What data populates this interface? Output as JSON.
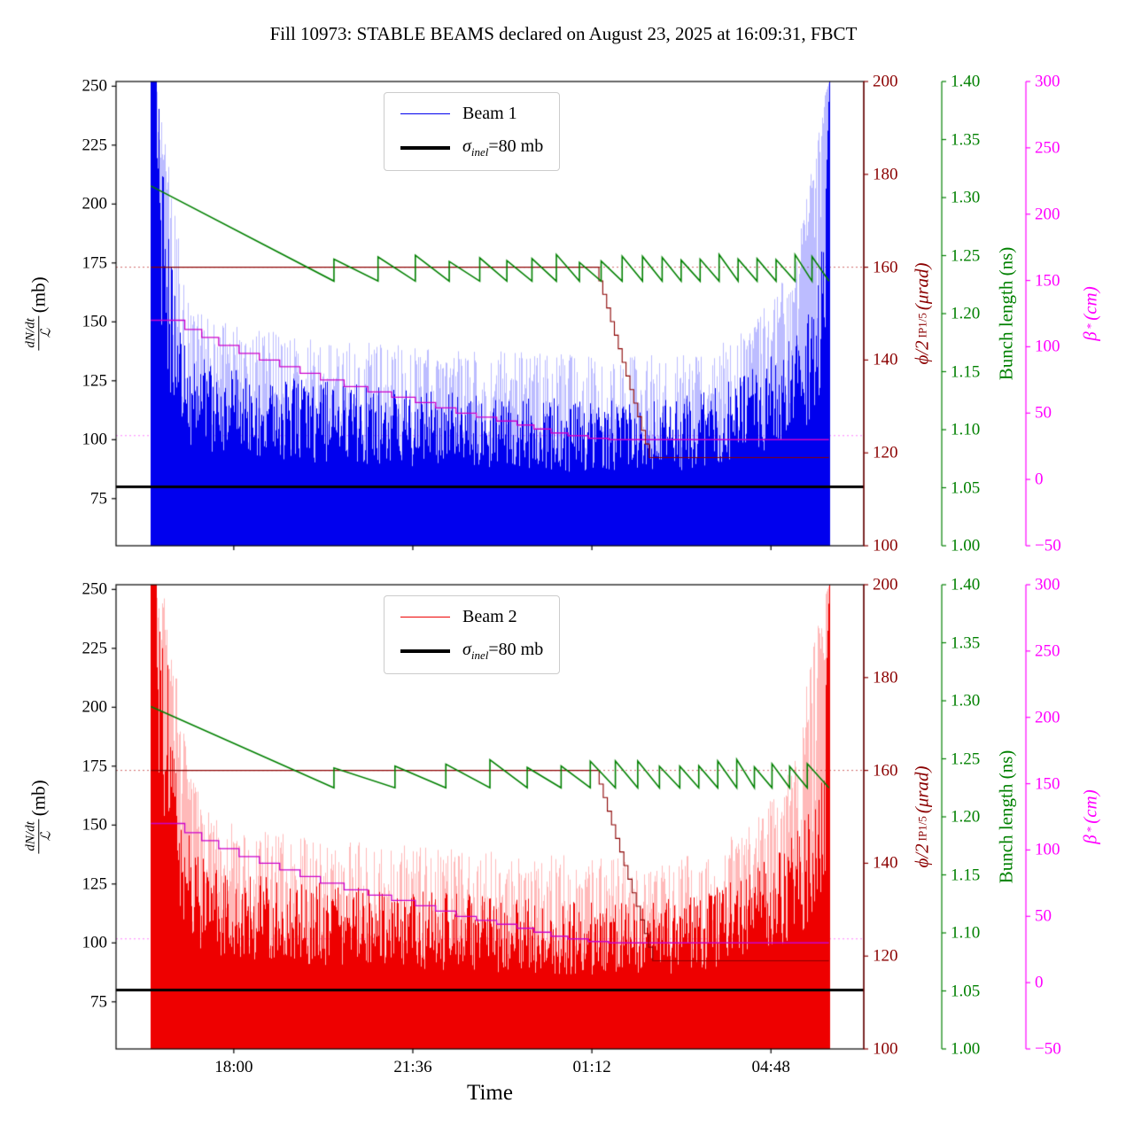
{
  "chart_data": {
    "type": "line",
    "title": "Fill 10973: STABLE BEAMS declared on August 23, 2025 at 16:09:31, FBCT",
    "xlabel": "Time",
    "axes": {
      "left": {
        "num": "dN/dt",
        "den": "ℒ",
        "post": " (mb)",
        "color": "#000000",
        "range": [
          55,
          252
        ],
        "tick_values": [
          75,
          100,
          125,
          150,
          175,
          200,
          225,
          250
        ],
        "tick_labels": [
          "75",
          "100",
          "125",
          "150",
          "175",
          "200",
          "225",
          "250"
        ]
      },
      "phi": {
        "pre": "ϕ/2",
        "sub": "IP1/5",
        "post": " (μrad)",
        "color": "#8b0000",
        "range": [
          100,
          200
        ],
        "tick_values": [
          100,
          120,
          140,
          160,
          180,
          200
        ],
        "tick_labels": [
          "100",
          "120",
          "140",
          "160",
          "180",
          "200"
        ]
      },
      "bunch": {
        "label": "Bunch length (ns)",
        "color": "#008000",
        "range": [
          1.0,
          1.4
        ],
        "tick_values": [
          1.0,
          1.05,
          1.1,
          1.15,
          1.2,
          1.25,
          1.3,
          1.35,
          1.4
        ],
        "tick_labels": [
          "1.00",
          "1.05",
          "1.10",
          "1.15",
          "1.20",
          "1.25",
          "1.30",
          "1.35",
          "1.40"
        ]
      },
      "beta": {
        "pre": "β",
        "sup": "*",
        "post": " (cm)",
        "color": "#ff00ff",
        "range": [
          -50,
          300
        ],
        "tick_values": [
          -50,
          0,
          50,
          100,
          150,
          200,
          250,
          300
        ],
        "tick_labels": [
          "−50",
          "0",
          "50",
          "100",
          "150",
          "200",
          "250",
          "300"
        ]
      }
    },
    "xaxis": {
      "tick_labels": [
        "18:00",
        "21:36",
        "01:12",
        "04:48"
      ],
      "tick_minutes": [
        120,
        336,
        552,
        768
      ],
      "range_minutes": [
        -22,
        880
      ],
      "data_minutes": [
        20,
        838
      ]
    },
    "charts": [
      {
        "name": "beam1",
        "legend": {
          "line_label": "Beam 1",
          "sigma_pre": "σ",
          "sigma_sub": "inel",
          "sigma_post": "=80 mb"
        },
        "beam_color": "#0000ee",
        "beam_color_light": "rgba(80,80,255,0.38)",
        "sigma_value": 80,
        "sigma_color": "#000000",
        "noise": {
          "seed": 42,
          "low": 55,
          "high_light": [
            [
              0,
              252
            ],
            [
              0.012,
              252
            ],
            [
              0.022,
              235
            ],
            [
              0.035,
              195
            ],
            [
              0.05,
              168
            ],
            [
              0.08,
              152
            ],
            [
              0.15,
              147
            ],
            [
              0.25,
              143
            ],
            [
              0.4,
              140
            ],
            [
              0.55,
              137
            ],
            [
              0.7,
              135
            ],
            [
              0.8,
              138
            ],
            [
              0.87,
              146
            ],
            [
              0.92,
              162
            ],
            [
              0.95,
              180
            ],
            [
              0.97,
              212
            ],
            [
              0.985,
              238
            ],
            [
              1,
              252
            ]
          ],
          "high_dark": [
            [
              0,
              252
            ],
            [
              0.012,
              252
            ],
            [
              0.025,
              192
            ],
            [
              0.04,
              152
            ],
            [
              0.06,
              137
            ],
            [
              0.1,
              132
            ],
            [
              0.2,
              127
            ],
            [
              0.35,
              122
            ],
            [
              0.5,
              119
            ],
            [
              0.65,
              117
            ],
            [
              0.75,
              117
            ],
            [
              0.82,
              121
            ],
            [
              0.88,
              129
            ],
            [
              0.93,
              139
            ],
            [
              0.96,
              149
            ],
            [
              0.98,
              162
            ],
            [
              0.995,
              205
            ],
            [
              1,
              252
            ]
          ]
        },
        "phi": {
          "color": "#8b0000",
          "dotted_value": 160,
          "start": 160,
          "flat_until": 0.655,
          "ramp_end": 0.735,
          "end": 119,
          "steps": 14
        },
        "bunch": {
          "color": "#008000",
          "start": 1.31,
          "knee_t": 0.27,
          "valley": 1.228,
          "peak": 1.248,
          "teeth": [
            0.27,
            0.335,
            0.39,
            0.44,
            0.485,
            0.525,
            0.562,
            0.598,
            0.632,
            0.664,
            0.695,
            0.725,
            0.754,
            0.782,
            0.81,
            0.838,
            0.866,
            0.894,
            0.922,
            0.95,
            0.975
          ]
        },
        "beta": {
          "color": "#cc00cc",
          "dotted_value": 33,
          "steps": [
            [
              0,
              120
            ],
            [
              0.05,
              113
            ],
            [
              0.075,
              107
            ],
            [
              0.1,
              101
            ],
            [
              0.13,
              95
            ],
            [
              0.16,
              90
            ],
            [
              0.19,
              85
            ],
            [
              0.22,
              80
            ],
            [
              0.25,
              75
            ],
            [
              0.285,
              70
            ],
            [
              0.32,
              66
            ],
            [
              0.355,
              62
            ],
            [
              0.39,
              58
            ],
            [
              0.42,
              54
            ],
            [
              0.45,
              50
            ],
            [
              0.48,
              47
            ],
            [
              0.51,
              44
            ],
            [
              0.54,
              41
            ],
            [
              0.565,
              38
            ],
            [
              0.59,
              35
            ],
            [
              0.615,
              33
            ],
            [
              0.645,
              31
            ],
            [
              0.675,
              30
            ]
          ]
        }
      },
      {
        "name": "beam2",
        "legend": {
          "line_label": "Beam 2",
          "sigma_pre": "σ",
          "sigma_sub": "inel",
          "sigma_post": "=80 mb"
        },
        "beam_color": "#ee0000",
        "beam_color_light": "rgba(255,70,70,0.38)",
        "sigma_value": 80,
        "sigma_color": "#000000",
        "noise": {
          "seed": 1337,
          "low": 55,
          "high_light": [
            [
              0,
              252
            ],
            [
              0.02,
              252
            ],
            [
              0.03,
              230
            ],
            [
              0.045,
              200
            ],
            [
              0.06,
              172
            ],
            [
              0.09,
              153
            ],
            [
              0.15,
              148
            ],
            [
              0.25,
              144
            ],
            [
              0.4,
              141
            ],
            [
              0.55,
              138
            ],
            [
              0.7,
              136
            ],
            [
              0.8,
              139
            ],
            [
              0.87,
              147
            ],
            [
              0.92,
              163
            ],
            [
              0.95,
              182
            ],
            [
              0.97,
              215
            ],
            [
              0.985,
              240
            ],
            [
              1,
              252
            ]
          ],
          "high_dark": [
            [
              0,
              252
            ],
            [
              0.018,
              252
            ],
            [
              0.03,
              195
            ],
            [
              0.05,
              155
            ],
            [
              0.07,
              139
            ],
            [
              0.1,
              133
            ],
            [
              0.2,
              128
            ],
            [
              0.35,
              123
            ],
            [
              0.5,
              120
            ],
            [
              0.65,
              118
            ],
            [
              0.75,
              118
            ],
            [
              0.82,
              122
            ],
            [
              0.88,
              130
            ],
            [
              0.93,
              140
            ],
            [
              0.96,
              150
            ],
            [
              0.98,
              163
            ],
            [
              0.995,
              208
            ],
            [
              1,
              252
            ]
          ]
        },
        "phi": {
          "color": "#8b0000",
          "dotted_value": 160,
          "start": 160,
          "flat_until": 0.655,
          "ramp_end": 0.74,
          "end": 119,
          "steps": 14
        },
        "bunch": {
          "color": "#008000",
          "start": 1.295,
          "knee_t": 0.27,
          "valley": 1.225,
          "peak": 1.246,
          "teeth": [
            0.27,
            0.36,
            0.435,
            0.5,
            0.555,
            0.605,
            0.648,
            0.685,
            0.718,
            0.75,
            0.78,
            0.808,
            0.836,
            0.864,
            0.89,
            0.916,
            0.942,
            0.968
          ]
        },
        "beta": {
          "color": "#cc00cc",
          "dotted_value": 33,
          "steps": [
            [
              0,
              120
            ],
            [
              0.05,
              113
            ],
            [
              0.075,
              107
            ],
            [
              0.1,
              101
            ],
            [
              0.13,
              95
            ],
            [
              0.16,
              90
            ],
            [
              0.19,
              85
            ],
            [
              0.22,
              80
            ],
            [
              0.25,
              75
            ],
            [
              0.285,
              70
            ],
            [
              0.32,
              66
            ],
            [
              0.355,
              62
            ],
            [
              0.39,
              58
            ],
            [
              0.42,
              54
            ],
            [
              0.45,
              50
            ],
            [
              0.48,
              47
            ],
            [
              0.51,
              44
            ],
            [
              0.54,
              41
            ],
            [
              0.565,
              38
            ],
            [
              0.59,
              35
            ],
            [
              0.615,
              33
            ],
            [
              0.645,
              31
            ],
            [
              0.675,
              30
            ]
          ]
        }
      }
    ]
  }
}
